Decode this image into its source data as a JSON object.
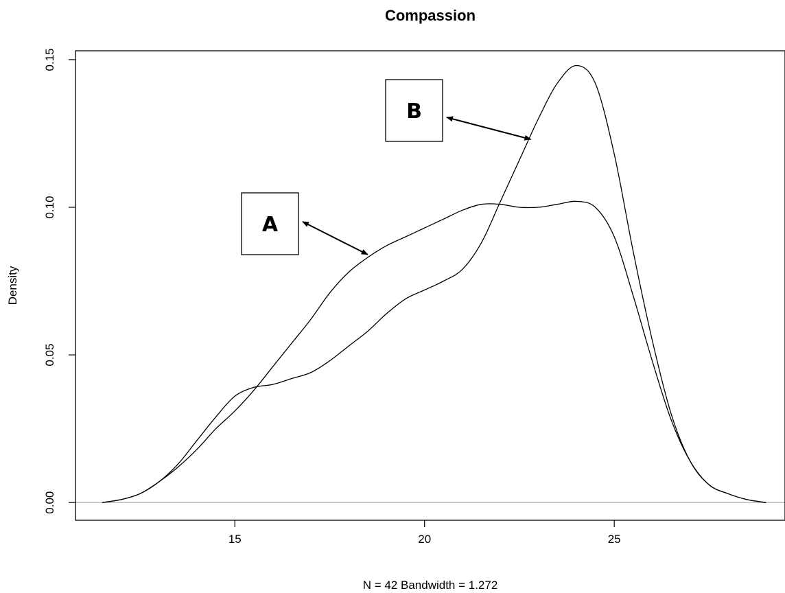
{
  "chart_data": {
    "type": "line",
    "title": "Compassion",
    "xlabel": "N = 42   Bandwidth = 1.272",
    "ylabel": "Density",
    "xlim": [
      10.8,
      29.5
    ],
    "ylim": [
      -0.006,
      0.153
    ],
    "x_ticks": [
      "15",
      "20",
      "25"
    ],
    "y_ticks": [
      "0.00",
      "0.05",
      "0.10",
      "0.15"
    ],
    "zero_line": true,
    "series": [
      {
        "x": [
          11.5,
          12.0,
          12.5,
          13.0,
          13.5,
          14.0,
          14.5,
          15.0,
          15.5,
          16.0,
          16.5,
          17.0,
          17.5,
          18.0,
          18.5,
          19.0,
          19.5,
          20.0,
          20.5,
          21.0,
          21.5,
          22.0,
          22.5,
          23.0,
          23.5,
          24.0,
          24.5,
          25.0,
          25.5,
          26.0,
          26.5,
          27.0,
          27.5,
          28.0,
          28.5,
          29.0
        ],
        "y": [
          0.0,
          0.001,
          0.003,
          0.007,
          0.013,
          0.021,
          0.029,
          0.036,
          0.039,
          0.04,
          0.042,
          0.044,
          0.048,
          0.053,
          0.058,
          0.064,
          0.069,
          0.072,
          0.075,
          0.079,
          0.088,
          0.102,
          0.116,
          0.13,
          0.142,
          0.148,
          0.142,
          0.118,
          0.085,
          0.055,
          0.03,
          0.014,
          0.006,
          0.003,
          0.001,
          0.0
        ]
      },
      {
        "x": [
          11.5,
          12.0,
          12.5,
          13.0,
          13.5,
          14.0,
          14.5,
          15.0,
          15.5,
          16.0,
          16.5,
          17.0,
          17.5,
          18.0,
          18.5,
          19.0,
          19.5,
          20.0,
          20.5,
          21.0,
          21.5,
          22.0,
          22.5,
          23.0,
          23.5,
          24.0,
          24.5,
          25.0,
          25.5,
          26.0,
          26.5,
          27.0,
          27.5,
          28.0,
          28.5,
          29.0
        ],
        "y": [
          0.0,
          0.001,
          0.003,
          0.007,
          0.012,
          0.018,
          0.025,
          0.031,
          0.038,
          0.046,
          0.054,
          0.062,
          0.071,
          0.078,
          0.083,
          0.087,
          0.09,
          0.093,
          0.096,
          0.099,
          0.101,
          0.101,
          0.1,
          0.1,
          0.101,
          0.102,
          0.1,
          0.09,
          0.07,
          0.048,
          0.028,
          0.014,
          0.006,
          0.003,
          0.001,
          0.0
        ]
      }
    ],
    "annotations": [
      {
        "label": "A",
        "points_to": {
          "x": 18.5,
          "y": 0.084
        }
      },
      {
        "label": "B",
        "points_to": {
          "x": 22.8,
          "y": 0.123
        }
      }
    ]
  }
}
